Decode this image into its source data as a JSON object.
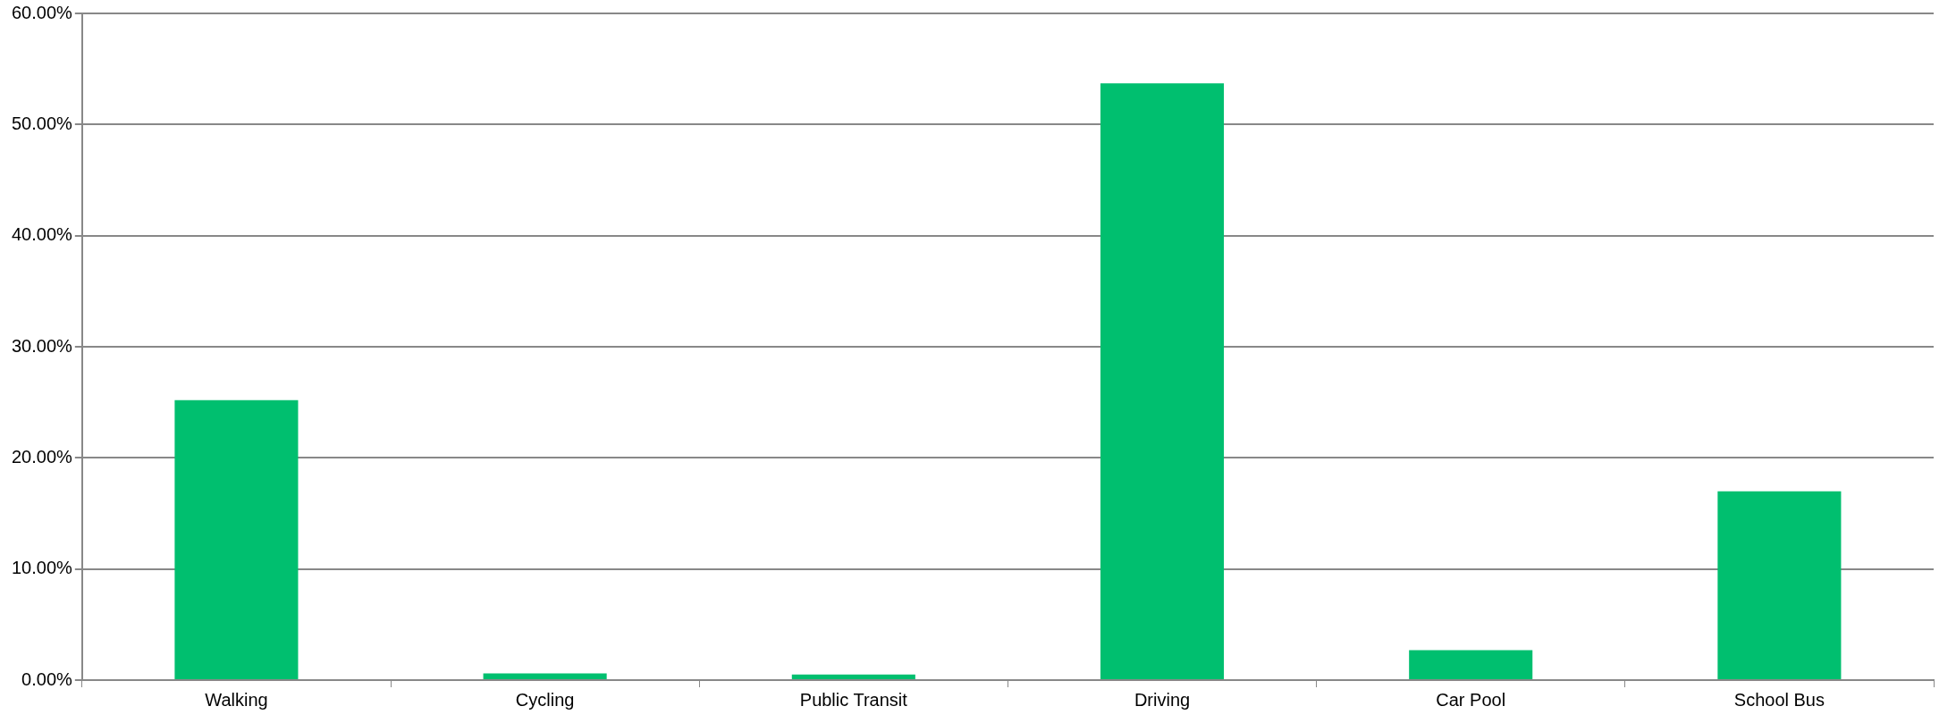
{
  "chart_data": {
    "type": "bar",
    "categories": [
      "Walking",
      "Cycling",
      "Public Transit",
      "Driving",
      "Car Pool",
      "School Bus"
    ],
    "values": [
      25.2,
      0.6,
      0.5,
      53.7,
      2.7,
      17.0
    ],
    "color": "#00bf6f",
    "ylim": [
      0,
      60
    ],
    "yticks": [
      {
        "value": 0,
        "label": "0.00%"
      },
      {
        "value": 10,
        "label": "10.00%"
      },
      {
        "value": 20,
        "label": "20.00%"
      },
      {
        "value": 30,
        "label": "30.00%"
      },
      {
        "value": 40,
        "label": "40.00%"
      },
      {
        "value": 50,
        "label": "50.00%"
      },
      {
        "value": 60,
        "label": "60.00%"
      }
    ],
    "grid": "y"
  }
}
